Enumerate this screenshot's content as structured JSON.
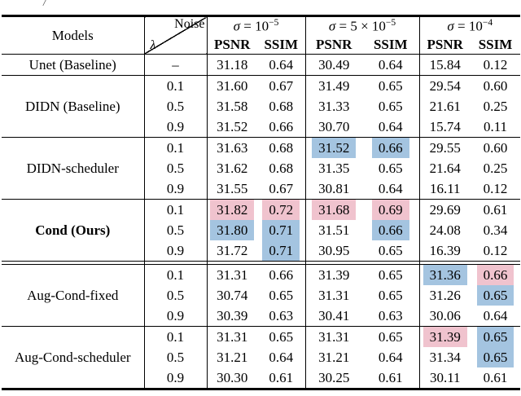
{
  "caption_fragment": "/",
  "colors": {
    "best_bg": "#f0c3ce",
    "second_bg": "#a4c4e0"
  },
  "header": {
    "models_label": "Models",
    "noise_label": "Noise",
    "lambda_label": "λ",
    "metric_labels": [
      "PSNR",
      "SSIM"
    ],
    "groups": [
      {
        "sym": "σ",
        "eq": " = ",
        "base": "10",
        "exp": "−5"
      },
      {
        "sym": "σ",
        "eq": " = ",
        "base": "5 × 10",
        "exp": "−5"
      },
      {
        "sym": "σ",
        "eq": " = ",
        "base": "10",
        "exp": "−4"
      }
    ]
  },
  "sections": [
    {
      "model": "Unet (Baseline)",
      "bold": false,
      "double_rule_after": false,
      "rows": [
        {
          "lambda": "–",
          "values": [
            "31.18",
            "0.64",
            "30.49",
            "0.64",
            "15.84",
            "0.12"
          ],
          "hl": [
            "",
            "",
            "",
            "",
            "",
            ""
          ]
        }
      ]
    },
    {
      "model": "DIDN (Baseline)",
      "bold": false,
      "double_rule_after": false,
      "rows": [
        {
          "lambda": "0.1",
          "values": [
            "31.60",
            "0.67",
            "31.49",
            "0.65",
            "29.54",
            "0.60"
          ],
          "hl": [
            "",
            "",
            "",
            "",
            "",
            ""
          ]
        },
        {
          "lambda": "0.5",
          "values": [
            "31.58",
            "0.68",
            "31.33",
            "0.65",
            "21.61",
            "0.25"
          ],
          "hl": [
            "",
            "",
            "",
            "",
            "",
            ""
          ]
        },
        {
          "lambda": "0.9",
          "values": [
            "31.52",
            "0.66",
            "30.70",
            "0.64",
            "15.74",
            "0.11"
          ],
          "hl": [
            "",
            "",
            "",
            "",
            "",
            ""
          ]
        }
      ]
    },
    {
      "model": "DIDN-scheduler",
      "bold": false,
      "double_rule_after": false,
      "rows": [
        {
          "lambda": "0.1",
          "values": [
            "31.63",
            "0.68",
            "31.52",
            "0.66",
            "29.55",
            "0.60"
          ],
          "hl": [
            "",
            "",
            "second",
            "second",
            "",
            ""
          ]
        },
        {
          "lambda": "0.5",
          "values": [
            "31.62",
            "0.68",
            "31.35",
            "0.65",
            "21.64",
            "0.25"
          ],
          "hl": [
            "",
            "",
            "",
            "",
            "",
            ""
          ]
        },
        {
          "lambda": "0.9",
          "values": [
            "31.55",
            "0.67",
            "30.81",
            "0.64",
            "16.11",
            "0.12"
          ],
          "hl": [
            "",
            "",
            "",
            "",
            "",
            ""
          ]
        }
      ]
    },
    {
      "model": "Cond (Ours)",
      "bold": true,
      "double_rule_after": true,
      "rows": [
        {
          "lambda": "0.1",
          "values": [
            "31.82",
            "0.72",
            "31.68",
            "0.69",
            "29.69",
            "0.61"
          ],
          "hl": [
            "best",
            "best",
            "best",
            "best",
            "",
            ""
          ]
        },
        {
          "lambda": "0.5",
          "values": [
            "31.80",
            "0.71",
            "31.51",
            "0.66",
            "24.08",
            "0.34"
          ],
          "hl": [
            "second",
            "second",
            "",
            "second",
            "",
            ""
          ]
        },
        {
          "lambda": "0.9",
          "values": [
            "31.72",
            "0.71",
            "30.95",
            "0.65",
            "16.39",
            "0.12"
          ],
          "hl": [
            "",
            "second",
            "",
            "",
            "",
            ""
          ]
        }
      ]
    },
    {
      "model": "Aug-Cond-fixed",
      "bold": false,
      "double_rule_after": false,
      "rows": [
        {
          "lambda": "0.1",
          "values": [
            "31.31",
            "0.66",
            "31.39",
            "0.65",
            "31.36",
            "0.66"
          ],
          "hl": [
            "",
            "",
            "",
            "",
            "second",
            "best"
          ]
        },
        {
          "lambda": "0.5",
          "values": [
            "30.74",
            "0.65",
            "31.31",
            "0.65",
            "31.26",
            "0.65"
          ],
          "hl": [
            "",
            "",
            "",
            "",
            "",
            "second"
          ]
        },
        {
          "lambda": "0.9",
          "values": [
            "30.39",
            "0.63",
            "30.41",
            "0.63",
            "30.06",
            "0.64"
          ],
          "hl": [
            "",
            "",
            "",
            "",
            "",
            ""
          ]
        }
      ]
    },
    {
      "model": "Aug-Cond-scheduler",
      "bold": false,
      "double_rule_after": false,
      "rows": [
        {
          "lambda": "0.1",
          "values": [
            "31.31",
            "0.65",
            "31.31",
            "0.65",
            "31.39",
            "0.65"
          ],
          "hl": [
            "",
            "",
            "",
            "",
            "best",
            "second"
          ]
        },
        {
          "lambda": "0.5",
          "values": [
            "31.21",
            "0.64",
            "31.21",
            "0.64",
            "31.34",
            "0.65"
          ],
          "hl": [
            "",
            "",
            "",
            "",
            "",
            "second"
          ]
        },
        {
          "lambda": "0.9",
          "values": [
            "30.30",
            "0.61",
            "30.25",
            "0.61",
            "30.11",
            "0.61"
          ],
          "hl": [
            "",
            "",
            "",
            "",
            "",
            ""
          ]
        }
      ]
    }
  ]
}
